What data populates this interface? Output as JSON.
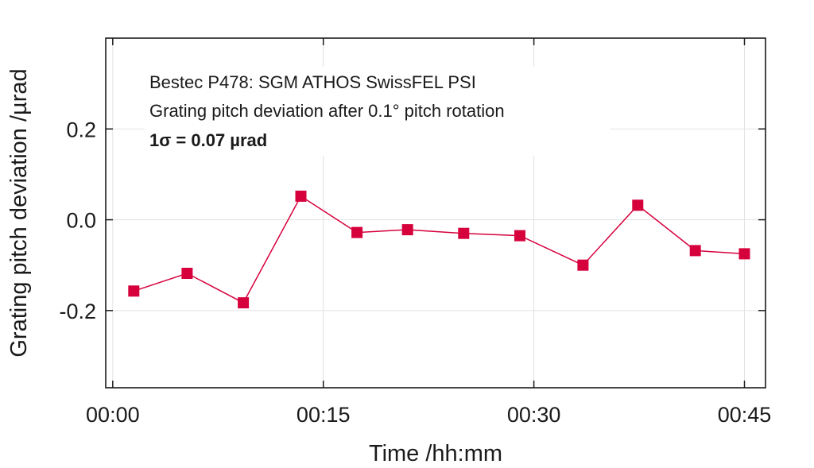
{
  "chart_data": {
    "type": "line",
    "title": "",
    "xlabel": "Time /hh:mm",
    "ylabel": "Grating pitch deviation /µrad",
    "xlim": [
      -0.5,
      46.5
    ],
    "ylim": [
      -0.37,
      0.4
    ],
    "x_ticks": [
      0,
      15,
      30,
      45
    ],
    "x_tick_labels": [
      "00:00",
      "00:15",
      "00:30",
      "00:45"
    ],
    "y_ticks": [
      0.2,
      0.0,
      -0.2
    ],
    "y_tick_labels": [
      "0.2",
      "0.0",
      "-0.2"
    ],
    "grid": true,
    "legend": null,
    "series": [
      {
        "name": "Grating pitch deviation",
        "color": "#d6003c",
        "marker": "square",
        "x": [
          1.5,
          5.3,
          9.3,
          13.4,
          17.4,
          21.0,
          25.0,
          29.0,
          33.5,
          37.4,
          41.5,
          45.0
        ],
        "y": [
          -0.157,
          -0.118,
          -0.183,
          0.052,
          -0.028,
          -0.022,
          -0.03,
          -0.035,
          -0.1,
          0.032,
          -0.068,
          -0.075
        ]
      }
    ],
    "annotations": [
      "Bestec P478: SGM ATHOS SwissFEL PSI",
      "Grating pitch deviation after 0.1° pitch rotation",
      "1σ = 0.07 µrad"
    ]
  }
}
